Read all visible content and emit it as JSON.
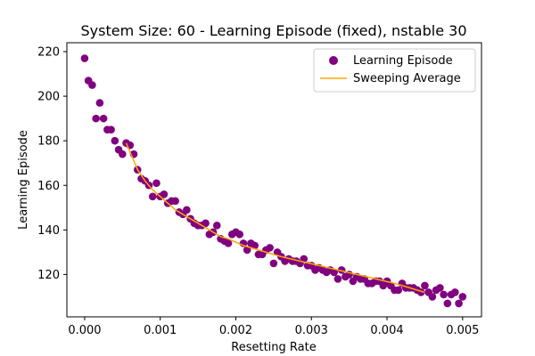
{
  "chart_data": {
    "type": "scatter",
    "title": "System Size: 60 - Learning Episode (fixed), nstable 30",
    "xlabel": "Resetting Rate",
    "ylabel": "Learning Episode",
    "xlim": [
      -0.000235,
      0.00525
    ],
    "ylim": [
      101,
      224
    ],
    "xticks": [
      0.0,
      0.001,
      0.002,
      0.003,
      0.004,
      0.005
    ],
    "xtick_labels": [
      "0.000",
      "0.001",
      "0.002",
      "0.003",
      "0.004",
      "0.005"
    ],
    "yticks": [
      120,
      140,
      160,
      180,
      200,
      220
    ],
    "ytick_labels": [
      "120",
      "140",
      "160",
      "180",
      "200",
      "220"
    ],
    "grid": false,
    "legend_position": "top-right",
    "legend": [
      "Learning Episode",
      "Sweeping Average"
    ],
    "series": [
      {
        "name": "Learning Episode",
        "kind": "scatter",
        "color": "#800080",
        "x": [
          0.0,
          5e-05,
          0.0001,
          0.00015,
          0.0002,
          0.00025,
          0.0003,
          0.00035,
          0.0004,
          0.00045,
          0.0005,
          0.00055,
          0.0006,
          0.00065,
          0.0007,
          0.00075,
          0.0008,
          0.00085,
          0.0009,
          0.00095,
          0.001,
          0.00105,
          0.0011,
          0.00115,
          0.0012,
          0.00125,
          0.0013,
          0.00135,
          0.0014,
          0.00145,
          0.0015,
          0.00155,
          0.0016,
          0.00165,
          0.0017,
          0.00175,
          0.0018,
          0.00185,
          0.0019,
          0.00195,
          0.002,
          0.00205,
          0.0021,
          0.00215,
          0.0022,
          0.00225,
          0.0023,
          0.00235,
          0.0024,
          0.00245,
          0.0025,
          0.00255,
          0.0026,
          0.00265,
          0.0027,
          0.00275,
          0.0028,
          0.00285,
          0.0029,
          0.00295,
          0.003,
          0.00305,
          0.0031,
          0.00315,
          0.0032,
          0.00325,
          0.0033,
          0.00335,
          0.0034,
          0.00345,
          0.0035,
          0.00355,
          0.0036,
          0.00365,
          0.0037,
          0.00375,
          0.0038,
          0.00385,
          0.0039,
          0.00395,
          0.004,
          0.00405,
          0.0041,
          0.00415,
          0.0042,
          0.00425,
          0.0043,
          0.00435,
          0.0044,
          0.00445,
          0.0045,
          0.00455,
          0.0046,
          0.00465,
          0.0047,
          0.00475,
          0.0048,
          0.00485,
          0.0049,
          0.00495,
          0.005
        ],
        "y": [
          217,
          207,
          205,
          190,
          197,
          190,
          185,
          185,
          180,
          176,
          174,
          179,
          178,
          174,
          167,
          163,
          162,
          160,
          155,
          161,
          155,
          156,
          152,
          153,
          153,
          148,
          147,
          149,
          145,
          143,
          142,
          142,
          143,
          138,
          139,
          142,
          136,
          135,
          134,
          138,
          139,
          138,
          134,
          131,
          134,
          133,
          129,
          129,
          131,
          132,
          125,
          130,
          128,
          126,
          127,
          126,
          126,
          125,
          127,
          124,
          124,
          122,
          123,
          122,
          121,
          122,
          121,
          118,
          122,
          119,
          120,
          117,
          119,
          118,
          118,
          116,
          116,
          117,
          117,
          115,
          117,
          115,
          113,
          113,
          116,
          114,
          114,
          114,
          113,
          112,
          115,
          112,
          110,
          113,
          114,
          111,
          107,
          111,
          112,
          107,
          110
        ]
      },
      {
        "name": "Sweeping Average",
        "kind": "line",
        "color": "#ffa500",
        "x": [
          0.00055,
          0.0007,
          0.0008,
          0.0009,
          0.001,
          0.0011,
          0.0012,
          0.0013,
          0.0014,
          0.0015,
          0.0016,
          0.0017,
          0.0018,
          0.0019,
          0.002,
          0.0021,
          0.0022,
          0.0023,
          0.0024,
          0.0025,
          0.0026,
          0.0027,
          0.0028,
          0.0029,
          0.003,
          0.0031,
          0.0032,
          0.0033,
          0.0034,
          0.0035,
          0.0036,
          0.0037,
          0.0038,
          0.0039,
          0.004,
          0.0041,
          0.0042,
          0.0043,
          0.0044,
          0.0045
        ],
        "y": [
          179,
          167,
          162,
          158,
          155,
          152,
          149,
          147,
          145,
          143,
          141,
          139,
          137,
          136,
          134.5,
          133,
          132,
          131,
          130,
          129,
          128,
          127.2,
          126.4,
          125.6,
          124.8,
          124,
          123.2,
          122.4,
          121.6,
          120.8,
          120,
          119.2,
          118.4,
          117.6,
          116.8,
          116,
          115,
          114,
          113,
          112
        ]
      }
    ]
  }
}
